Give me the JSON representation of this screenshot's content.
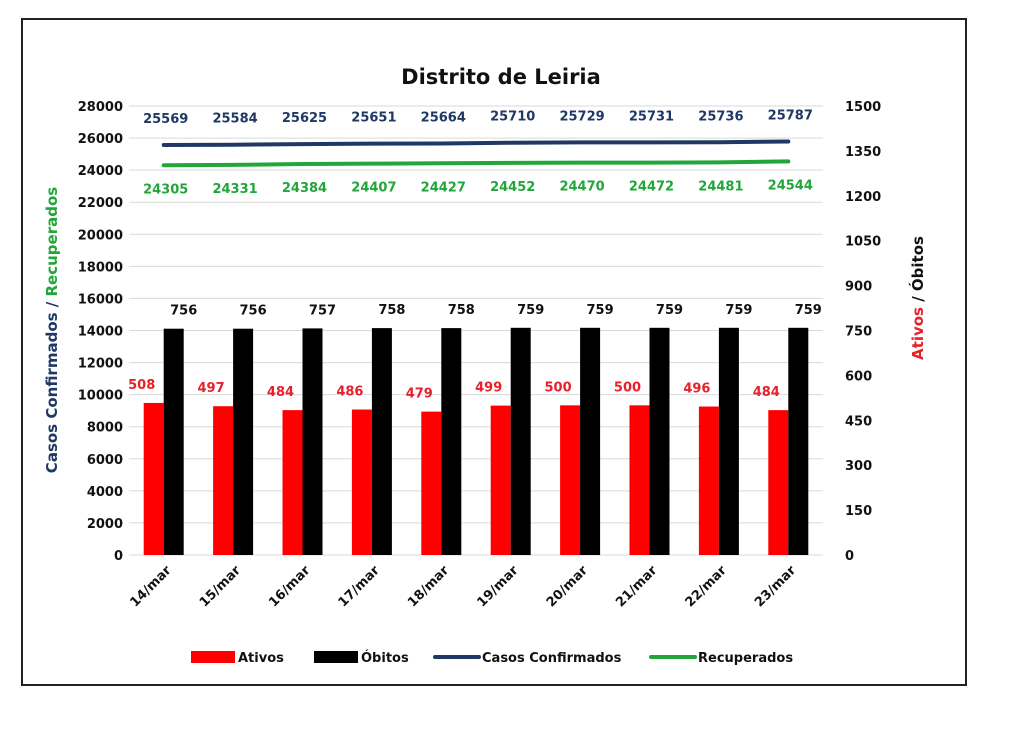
{
  "chart_data": {
    "type": "bar",
    "title": "Distrito de Leiria",
    "categories": [
      "14/mar",
      "15/mar",
      "16/mar",
      "17/mar",
      "18/mar",
      "19/mar",
      "20/mar",
      "21/mar",
      "22/mar",
      "23/mar"
    ],
    "y_left": {
      "label_part1": "Casos Confirmados",
      "label_sep": " / ",
      "label_part2": "Recuperados",
      "range": [
        0,
        28000
      ],
      "ticks": [
        "0",
        "2000",
        "4000",
        "6000",
        "8000",
        "10000",
        "12000",
        "14000",
        "16000",
        "18000",
        "20000",
        "22000",
        "24000",
        "26000",
        "28000"
      ]
    },
    "y_right": {
      "label_part1": "Ativos",
      "label_sep": " / ",
      "label_part2": "Óbitos",
      "range": [
        0,
        1500
      ],
      "ticks": [
        "0",
        "150",
        "300",
        "450",
        "600",
        "750",
        "900",
        "1050",
        "1200",
        "1350",
        "1500"
      ]
    },
    "grid": true,
    "legend_position": "bottom",
    "series": [
      {
        "name": "Ativos",
        "type": "bar",
        "axis": "right",
        "color": "#ff0000",
        "label_color": "#e8202a",
        "values": [
          508,
          497,
          484,
          486,
          479,
          499,
          500,
          500,
          496,
          484
        ]
      },
      {
        "name": "Óbitos",
        "type": "bar",
        "axis": "right",
        "color": "#000000",
        "label_color": "#111111",
        "values": [
          756,
          756,
          757,
          758,
          758,
          759,
          759,
          759,
          759,
          759
        ]
      },
      {
        "name": "Casos Confirmados",
        "type": "line",
        "axis": "left",
        "color": "#1f3864",
        "label_color": "#1f3864",
        "values": [
          25569,
          25584,
          25625,
          25651,
          25664,
          25710,
          25729,
          25731,
          25736,
          25787
        ]
      },
      {
        "name": "Recuperados",
        "type": "line",
        "axis": "left",
        "color": "#22a639",
        "label_color": "#22a639",
        "values": [
          24305,
          24331,
          24384,
          24407,
          24427,
          24452,
          24470,
          24472,
          24481,
          24544
        ]
      }
    ]
  }
}
